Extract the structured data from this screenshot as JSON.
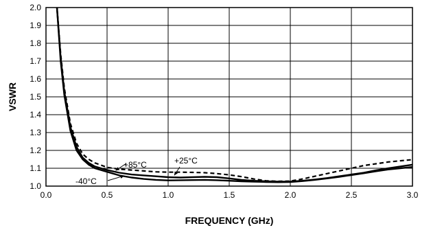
{
  "chart_data": {
    "type": "line",
    "title": "",
    "xlabel": "FREQUENCY (GHz)",
    "ylabel": "VSWR",
    "xlim": [
      0.0,
      3.0
    ],
    "ylim": [
      1.0,
      2.0
    ],
    "x_ticks": [
      "0.0",
      "0.5",
      "1.0",
      "1.5",
      "2.0",
      "2.5",
      "3.0"
    ],
    "y_ticks": [
      "1.0",
      "1.1",
      "1.2",
      "1.3",
      "1.4",
      "1.5",
      "1.6",
      "1.7",
      "1.8",
      "1.9",
      "2.0"
    ],
    "grid": true,
    "series": [
      {
        "name": "+85°C",
        "style": "solid",
        "x": [
          0.09,
          0.12,
          0.15,
          0.2,
          0.25,
          0.3,
          0.35,
          0.4,
          0.5,
          0.6,
          0.7,
          0.8,
          0.9,
          1.0,
          1.1,
          1.2,
          1.3,
          1.4,
          1.5,
          1.6,
          1.7,
          1.8,
          1.9,
          2.0,
          2.1,
          2.2,
          2.3,
          2.4,
          2.5,
          2.6,
          2.7,
          2.8,
          2.9,
          3.0
        ],
        "y": [
          2.0,
          1.72,
          1.53,
          1.33,
          1.22,
          1.16,
          1.13,
          1.11,
          1.09,
          1.075,
          1.065,
          1.06,
          1.055,
          1.05,
          1.048,
          1.05,
          1.052,
          1.05,
          1.043,
          1.035,
          1.03,
          1.027,
          1.025,
          1.025,
          1.03,
          1.037,
          1.045,
          1.055,
          1.065,
          1.075,
          1.088,
          1.1,
          1.11,
          1.12
        ]
      },
      {
        "name": "+25°C",
        "style": "dashed",
        "x": [
          0.09,
          0.12,
          0.15,
          0.2,
          0.25,
          0.3,
          0.35,
          0.4,
          0.5,
          0.6,
          0.7,
          0.8,
          0.9,
          1.0,
          1.1,
          1.2,
          1.3,
          1.4,
          1.5,
          1.6,
          1.7,
          1.8,
          1.9,
          2.0,
          2.1,
          2.2,
          2.3,
          2.4,
          2.5,
          2.6,
          2.7,
          2.8,
          2.9,
          3.0
        ],
        "y": [
          2.0,
          1.74,
          1.55,
          1.35,
          1.24,
          1.18,
          1.15,
          1.13,
          1.105,
          1.095,
          1.09,
          1.085,
          1.08,
          1.078,
          1.078,
          1.077,
          1.075,
          1.07,
          1.063,
          1.053,
          1.04,
          1.03,
          1.027,
          1.028,
          1.04,
          1.055,
          1.07,
          1.085,
          1.1,
          1.115,
          1.125,
          1.135,
          1.142,
          1.148
        ]
      },
      {
        "name": "-40°C",
        "style": "solid",
        "x": [
          0.09,
          0.12,
          0.15,
          0.2,
          0.25,
          0.3,
          0.35,
          0.4,
          0.5,
          0.6,
          0.7,
          0.8,
          0.9,
          1.0,
          1.1,
          1.2,
          1.3,
          1.4,
          1.5,
          1.6,
          1.7,
          1.8,
          1.9,
          2.0,
          2.1,
          2.2,
          2.3,
          2.4,
          2.5,
          2.6,
          2.7,
          2.8,
          2.9,
          3.0
        ],
        "y": [
          2.0,
          1.7,
          1.51,
          1.31,
          1.2,
          1.15,
          1.12,
          1.1,
          1.08,
          1.06,
          1.048,
          1.04,
          1.035,
          1.032,
          1.033,
          1.034,
          1.035,
          1.033,
          1.03,
          1.027,
          1.025,
          1.023,
          1.022,
          1.023,
          1.028,
          1.035,
          1.043,
          1.052,
          1.062,
          1.072,
          1.083,
          1.093,
          1.1,
          1.107
        ]
      }
    ],
    "annotations": [
      {
        "text": "+85°C",
        "series": "+85°C"
      },
      {
        "text": "+25°C",
        "series": "+25°C"
      },
      {
        "text": "-40°C",
        "series": "-40°C"
      }
    ]
  }
}
